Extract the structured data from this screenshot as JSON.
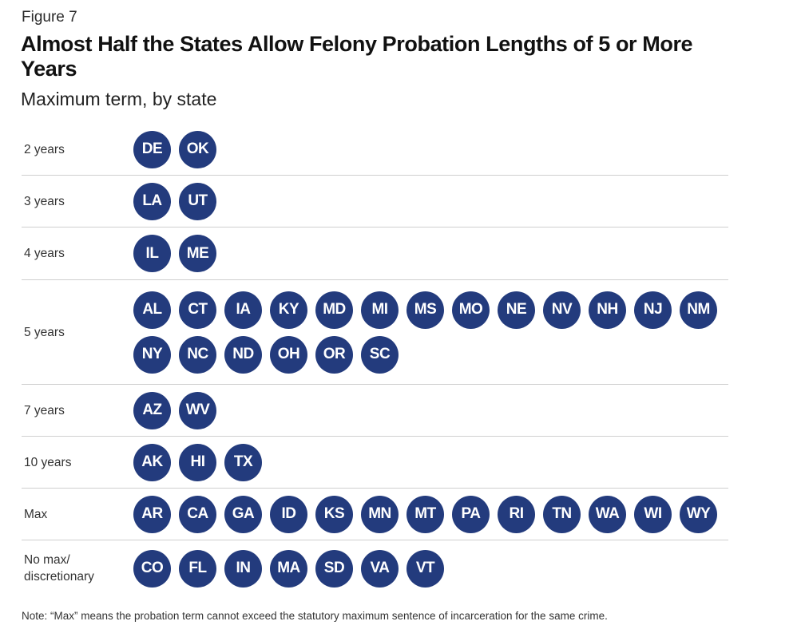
{
  "figure_label": "Figure 7",
  "chart_data": {
    "type": "table",
    "title": "Almost Half the States Allow Felony Probation Lengths of 5 or More Years",
    "subtitle": "Maximum term, by state",
    "rows": [
      {
        "label": "2 years",
        "states": [
          "DE",
          "OK"
        ]
      },
      {
        "label": "3 years",
        "states": [
          "LA",
          "UT"
        ]
      },
      {
        "label": "4 years",
        "states": [
          "IL",
          "ME"
        ]
      },
      {
        "label": "5 years",
        "states": [
          "AL",
          "CT",
          "IA",
          "KY",
          "MD",
          "MI",
          "MS",
          "MO",
          "NE",
          "NV",
          "NH",
          "NJ",
          "NM",
          "NY",
          "NC",
          "ND",
          "OH",
          "OR",
          "SC"
        ]
      },
      {
        "label": "7 years",
        "states": [
          "AZ",
          "WV"
        ]
      },
      {
        "label": "10 years",
        "states": [
          "AK",
          "HI",
          "TX"
        ]
      },
      {
        "label": "Max",
        "states": [
          "AR",
          "CA",
          "GA",
          "ID",
          "KS",
          "MN",
          "MT",
          "PA",
          "RI",
          "TN",
          "WA",
          "WI",
          "WY"
        ]
      },
      {
        "label": "No max/\ndiscretionary",
        "states": [
          "CO",
          "FL",
          "IN",
          "MA",
          "SD",
          "VA",
          "VT"
        ]
      }
    ],
    "bubble_color": "#233b7d"
  },
  "note": "Note: “Max” means the probation term cannot exceed the statutory maximum sentence of incarceration for the same crime."
}
